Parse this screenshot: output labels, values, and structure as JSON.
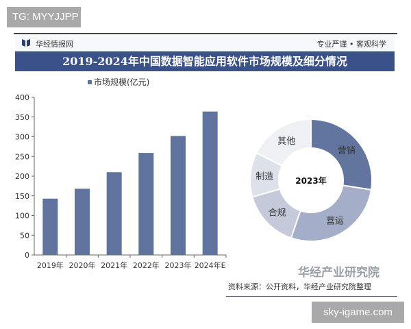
{
  "watermark_top": "TG: MYYJJPP",
  "watermark_bottom": "sky-igame.com",
  "header": {
    "brand": "华经情报网",
    "slogan": "专业严谨 • 客观科学"
  },
  "title": "2019-2024年中国数据智能应用软件市场规模及细分情况",
  "footer": {
    "institute": "华经产业研究院",
    "source": "资料来源：公开资料，华经产业研究院整理"
  },
  "colors": {
    "bar": "#60739f",
    "title_bg": "#3b5189"
  },
  "chart_data": [
    {
      "type": "bar",
      "title": "",
      "legend": [
        "市场规模(亿元)"
      ],
      "legend_position": "top",
      "categories": [
        "2019年",
        "2020年",
        "2021年",
        "2022年",
        "2023年",
        "2024年E"
      ],
      "values": [
        143,
        168,
        210,
        259,
        302,
        364
      ],
      "ylim": [
        0,
        400
      ],
      "yticks": [
        0,
        50,
        100,
        150,
        200,
        250,
        300,
        350,
        400
      ],
      "xlabel": "",
      "ylabel": "",
      "grid": false
    },
    {
      "type": "pie",
      "donut": true,
      "center_label": "2023年",
      "labels": [
        "营销",
        "营运",
        "合规",
        "制造",
        "其他"
      ],
      "values": [
        27.5,
        27.8,
        15.3,
        11.8,
        17.6
      ],
      "colors": [
        "#62759f",
        "#a4aec8",
        "#c4cada",
        "#dde1ea",
        "#eef0f4"
      ]
    }
  ]
}
